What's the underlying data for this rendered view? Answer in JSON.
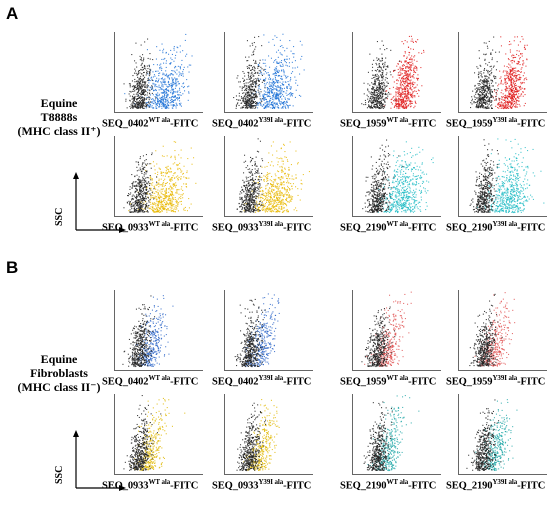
{
  "panels": [
    {
      "letter": "A",
      "row_label": [
        "Equine",
        "T8888s",
        "(MHC class II⁺)"
      ],
      "ssc_label": "SSC",
      "plots": [
        {
          "base": "SEQ_0402",
          "sup": "WT ala",
          "suffix": "-FITC",
          "color": "#1a6fd6",
          "spread": "wide"
        },
        {
          "base": "SEQ_0402",
          "sup": "Y39I ala",
          "suffix": "-FITC",
          "color": "#1a6fd6",
          "spread": "wide"
        },
        {
          "base": "SEQ_1959",
          "sup": "WT ala",
          "suffix": "-FITC",
          "color": "#e01b1b",
          "spread": "narrow"
        },
        {
          "base": "SEQ_1959",
          "sup": "Y39I ala",
          "suffix": "-FITC",
          "color": "#e01b1b",
          "spread": "narrow"
        },
        {
          "base": "SEQ_0933",
          "sup": "WT ala",
          "suffix": "-FITC",
          "color": "#e8b800",
          "spread": "wide"
        },
        {
          "base": "SEQ_0933",
          "sup": "Y39I ala",
          "suffix": "-FITC",
          "color": "#e8b800",
          "spread": "wide"
        },
        {
          "base": "SEQ_2190",
          "sup": "WT ala",
          "suffix": "-FITC",
          "color": "#1fbcc4",
          "spread": "wide"
        },
        {
          "base": "SEQ_2190",
          "sup": "Y39I ala",
          "suffix": "-FITC",
          "color": "#1fbcc4",
          "spread": "wide"
        }
      ]
    },
    {
      "letter": "B",
      "row_label": [
        "Equine",
        "Fibroblasts",
        "(MHC class II⁻)"
      ],
      "ssc_label": "SSC",
      "plots": [
        {
          "base": "SEQ_0402",
          "sup": "WT ala",
          "suffix": "-FITC",
          "color": "#2a64c8",
          "spread": "low"
        },
        {
          "base": "SEQ_0402",
          "sup": "Y39I ala",
          "suffix": "-FITC",
          "color": "#2a64c8",
          "spread": "low"
        },
        {
          "base": "SEQ_1959",
          "sup": "WT ala",
          "suffix": "-FITC",
          "color": "#e05050",
          "spread": "low"
        },
        {
          "base": "SEQ_1959",
          "sup": "Y39I ala",
          "suffix": "-FITC",
          "color": "#e05050",
          "spread": "low"
        },
        {
          "base": "SEQ_0933",
          "sup": "WT ala",
          "suffix": "-FITC",
          "color": "#e0b800",
          "spread": "low"
        },
        {
          "base": "SEQ_0933",
          "sup": "Y39I ala",
          "suffix": "-FITC",
          "color": "#e0b800",
          "spread": "low"
        },
        {
          "base": "SEQ_2190",
          "sup": "WT ala",
          "suffix": "-FITC",
          "color": "#1fa8a8",
          "spread": "low"
        },
        {
          "base": "SEQ_2190",
          "sup": "Y39I ala",
          "suffix": "-FITC",
          "color": "#1fa8a8",
          "spread": "low"
        }
      ]
    }
  ]
}
